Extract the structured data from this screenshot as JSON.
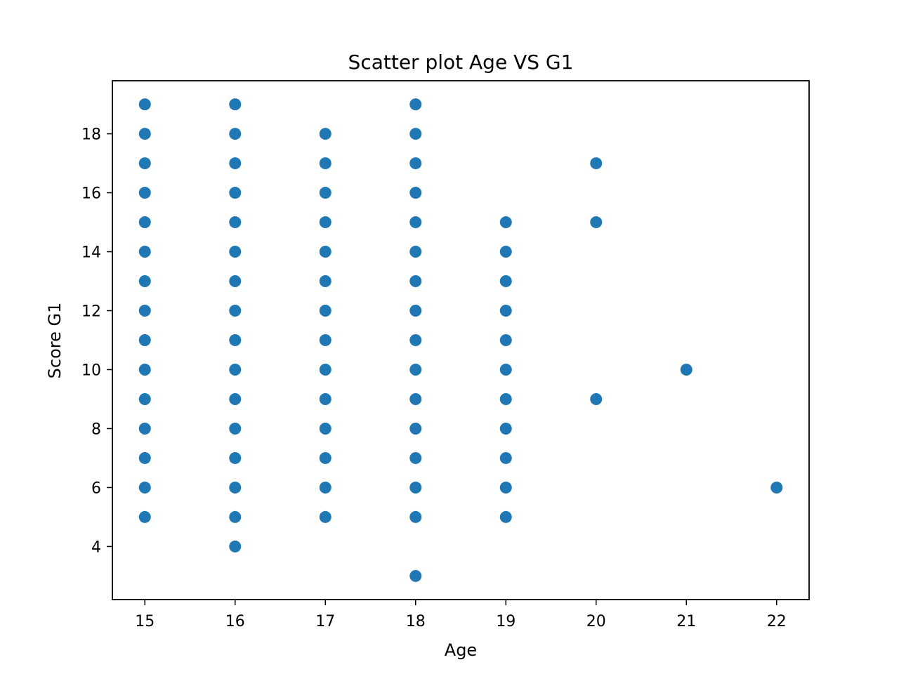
{
  "chart_data": {
    "type": "scatter",
    "title": "Scatter plot Age VS G1",
    "xlabel": "Age",
    "ylabel": "Score G1",
    "xlim": [
      14.64,
      22.36
    ],
    "ylim": [
      2.2,
      19.8
    ],
    "xticks": [
      15,
      16,
      17,
      18,
      19,
      20,
      21,
      22
    ],
    "yticks": [
      4,
      6,
      8,
      10,
      12,
      14,
      16,
      18
    ],
    "grid": false,
    "legend": "none",
    "color": "#1f77b4",
    "series": [
      {
        "points": [
          [
            15,
            5
          ],
          [
            15,
            6
          ],
          [
            15,
            7
          ],
          [
            15,
            8
          ],
          [
            15,
            9
          ],
          [
            15,
            10
          ],
          [
            15,
            11
          ],
          [
            15,
            12
          ],
          [
            15,
            13
          ],
          [
            15,
            14
          ],
          [
            15,
            15
          ],
          [
            15,
            16
          ],
          [
            15,
            17
          ],
          [
            15,
            18
          ],
          [
            15,
            19
          ],
          [
            16,
            4
          ],
          [
            16,
            5
          ],
          [
            16,
            6
          ],
          [
            16,
            7
          ],
          [
            16,
            8
          ],
          [
            16,
            9
          ],
          [
            16,
            10
          ],
          [
            16,
            11
          ],
          [
            16,
            12
          ],
          [
            16,
            13
          ],
          [
            16,
            14
          ],
          [
            16,
            15
          ],
          [
            16,
            16
          ],
          [
            16,
            17
          ],
          [
            16,
            18
          ],
          [
            16,
            19
          ],
          [
            17,
            5
          ],
          [
            17,
            6
          ],
          [
            17,
            7
          ],
          [
            17,
            8
          ],
          [
            17,
            9
          ],
          [
            17,
            10
          ],
          [
            17,
            11
          ],
          [
            17,
            12
          ],
          [
            17,
            13
          ],
          [
            17,
            14
          ],
          [
            17,
            15
          ],
          [
            17,
            16
          ],
          [
            17,
            17
          ],
          [
            17,
            18
          ],
          [
            18,
            3
          ],
          [
            18,
            5
          ],
          [
            18,
            6
          ],
          [
            18,
            7
          ],
          [
            18,
            8
          ],
          [
            18,
            9
          ],
          [
            18,
            10
          ],
          [
            18,
            11
          ],
          [
            18,
            12
          ],
          [
            18,
            13
          ],
          [
            18,
            14
          ],
          [
            18,
            15
          ],
          [
            18,
            16
          ],
          [
            18,
            17
          ],
          [
            18,
            18
          ],
          [
            18,
            19
          ],
          [
            19,
            5
          ],
          [
            19,
            6
          ],
          [
            19,
            7
          ],
          [
            19,
            8
          ],
          [
            19,
            9
          ],
          [
            19,
            10
          ],
          [
            19,
            11
          ],
          [
            19,
            12
          ],
          [
            19,
            13
          ],
          [
            19,
            14
          ],
          [
            19,
            15
          ],
          [
            20,
            9
          ],
          [
            20,
            15
          ],
          [
            20,
            17
          ],
          [
            21,
            10
          ],
          [
            22,
            6
          ]
        ]
      }
    ]
  }
}
